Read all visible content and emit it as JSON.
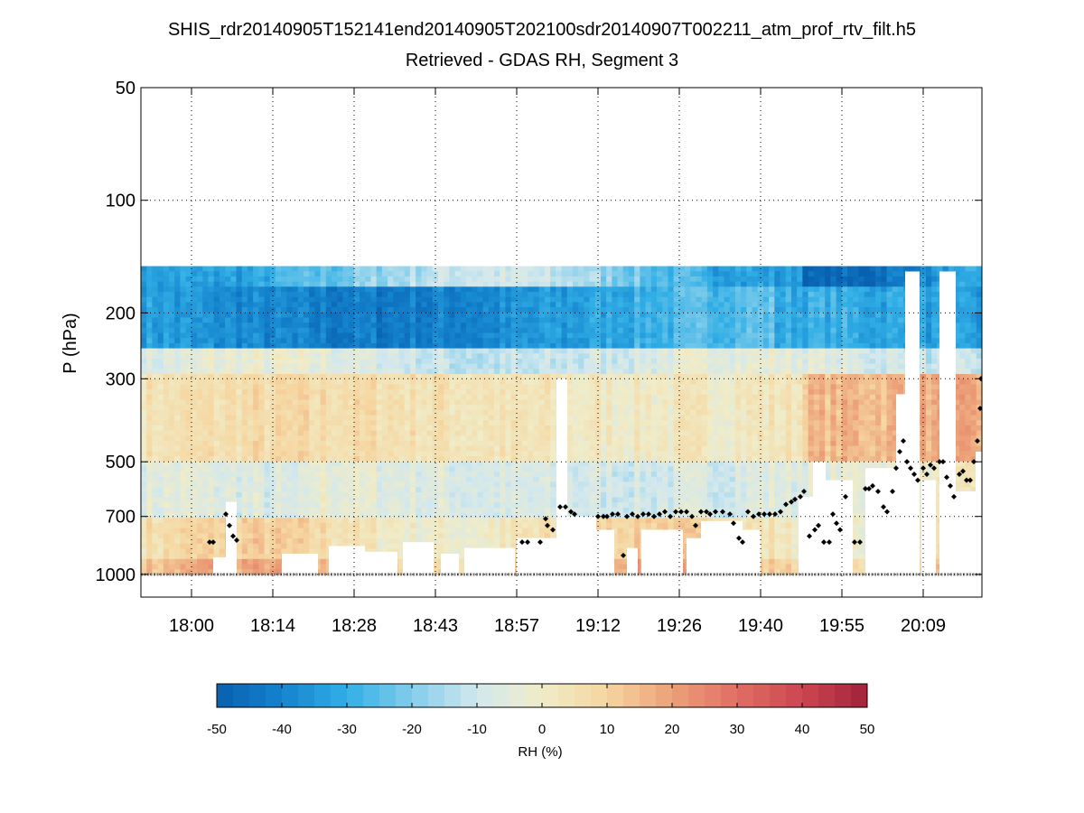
{
  "chart_data": {
    "type": "heatmap",
    "title": "SHIS_rdr20140905T152141end20140905T202100sdr20140907T002211_atm_prof_rtv_filt.h5",
    "subtitle": "Retrieved - GDAS RH, Segment 3",
    "ylabel": "P (hPa)",
    "y_scale": "log",
    "y_reversed": true,
    "ylim": [
      50,
      1150
    ],
    "y_ticks": [
      50,
      100,
      200,
      300,
      500,
      700,
      1000
    ],
    "x_ticks": [
      "18:00",
      "18:14",
      "18:28",
      "18:43",
      "18:57",
      "19:12",
      "19:26",
      "19:40",
      "19:55",
      "20:09"
    ],
    "grid": true,
    "colorbar": {
      "label": "RH (%)",
      "range": [
        -50,
        50
      ],
      "ticks": [
        -50,
        -40,
        -30,
        -20,
        -10,
        0,
        10,
        20,
        30,
        40,
        50
      ],
      "colormap": "diverging blue-white-red"
    },
    "field_top_hpa": 150,
    "surface_hpa": 1000
  },
  "colors": {
    "cold": "#0b64b4",
    "mid": "#eeeac8",
    "warm": "#a8243c",
    "markers": "#000000",
    "surface_line": "#777777"
  }
}
